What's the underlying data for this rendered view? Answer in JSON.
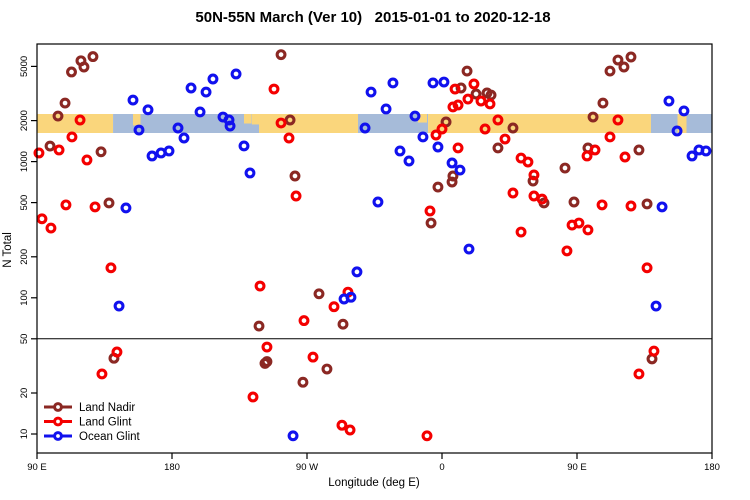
{
  "title": "50N-55N March (Ver 10)   2015-01-01 to 2020-12-18",
  "legend": {
    "items": [
      {
        "label": "Land Nadir",
        "color": "#8B2823"
      },
      {
        "label": "Land Glint",
        "color": "#F40000"
      },
      {
        "label": "Ocean Glint",
        "color": "#1111EE"
      }
    ]
  },
  "chart_data": {
    "type": "scatter",
    "title": "50N-55N March (Ver 10)   2015-01-01 to 2020-12-18",
    "xlabel": "Longitude (deg E)",
    "ylabel": "N Total",
    "x_axis": {
      "range": [
        90,
        540
      ],
      "ticks": [
        {
          "lon": 90,
          "label": "90 E"
        },
        {
          "lon": 180,
          "label": "180"
        },
        {
          "lon": 270,
          "label": "90 W"
        },
        {
          "lon": 360,
          "label": "0"
        },
        {
          "lon": 450,
          "label": "90 E"
        },
        {
          "lon": 540,
          "label": "180"
        }
      ],
      "note": "longitude increases eastward from 90E, wrapping through 180, 90W, 0 back to 180"
    },
    "y_axis": {
      "scale": "log",
      "range": [
        7,
        7500
      ],
      "ticks": [
        10,
        20,
        50,
        100,
        200,
        500,
        1000,
        2000,
        5000
      ]
    },
    "reference_line_n": 50,
    "land_ocean_band": {
      "center_n": 1900,
      "land_color": "#FAD67C",
      "ocean_color": "#A6BBD9",
      "segments": [
        {
          "from": 90,
          "to": 140.7,
          "type": "land"
        },
        {
          "from": 140.7,
          "to": 233.3,
          "type": "ocean"
        },
        {
          "from": 233.3,
          "to": 304,
          "type": "land"
        },
        {
          "from": 304,
          "to": 350.7,
          "type": "ocean"
        },
        {
          "from": 350.7,
          "to": 499.3,
          "type": "land"
        },
        {
          "from": 499.3,
          "to": 540,
          "type": "ocean"
        }
      ],
      "patches": [
        {
          "from": 154,
          "to": 159,
          "type": "land",
          "frac_top": 0,
          "frac_bot": 0.6
        },
        {
          "from": 228,
          "to": 233,
          "type": "land",
          "frac_top": 0,
          "frac_bot": 0.5
        },
        {
          "from": 233,
          "to": 238,
          "type": "ocean",
          "frac_top": 0.55,
          "frac_bot": 1
        },
        {
          "from": 344,
          "to": 350,
          "type": "land",
          "frac_top": 0,
          "frac_bot": 0.45
        },
        {
          "from": 517,
          "to": 523,
          "type": "land",
          "frac_top": 0,
          "frac_bot": 1
        }
      ]
    },
    "series": [
      {
        "name": "Land Nadir",
        "color": "#8B2823",
        "points": [
          [
            119.3,
            5500
          ],
          [
            113,
            4550
          ],
          [
            121.3,
            4950
          ],
          [
            127.3,
            5900
          ],
          [
            108.7,
            2690
          ],
          [
            104,
            2160
          ],
          [
            98.7,
            1300
          ],
          [
            132.7,
            1180
          ],
          [
            138,
            497
          ],
          [
            238,
            62
          ],
          [
            242,
            33
          ],
          [
            141.3,
            36
          ],
          [
            252.7,
            6100
          ],
          [
            258.7,
            2020
          ],
          [
            262,
            784
          ],
          [
            278,
            107
          ],
          [
            294,
            64
          ],
          [
            283.3,
            30
          ],
          [
            267.3,
            24
          ],
          [
            243.3,
            34
          ],
          [
            352.7,
            354
          ],
          [
            357.3,
            650
          ],
          [
            366.7,
            708
          ],
          [
            362.7,
            1955
          ],
          [
            367.3,
            784
          ],
          [
            376.7,
            4620
          ],
          [
            372.7,
            3470
          ],
          [
            382.7,
            3135
          ],
          [
            390,
            3190
          ],
          [
            392.7,
            3080
          ],
          [
            407.3,
            1765
          ],
          [
            397.3,
            1260
          ],
          [
            420.7,
            720
          ],
          [
            428,
            497
          ],
          [
            448,
            505
          ],
          [
            442,
            897
          ],
          [
            472,
            4620
          ],
          [
            477.3,
            5570
          ],
          [
            481.3,
            4950
          ],
          [
            486,
            5860
          ],
          [
            467.3,
            2690
          ],
          [
            460.7,
            2125
          ],
          [
            457.3,
            1260
          ],
          [
            491.3,
            1217
          ],
          [
            496.7,
            489
          ],
          [
            500,
            35.6
          ]
        ]
      },
      {
        "name": "Land Glint",
        "color": "#F40000",
        "points": [
          [
            118.7,
            2020
          ],
          [
            113.3,
            1517
          ],
          [
            104.7,
            1217
          ],
          [
            91.3,
            1157
          ],
          [
            123.3,
            1028
          ],
          [
            93.3,
            380
          ],
          [
            99.3,
            325
          ],
          [
            109.3,
            481
          ],
          [
            128.7,
            465
          ],
          [
            139.3,
            166
          ],
          [
            143.3,
            40
          ],
          [
            133.3,
            27.6
          ],
          [
            248,
            3410
          ],
          [
            252.7,
            1920
          ],
          [
            258,
            1490
          ],
          [
            262.7,
            559
          ],
          [
            238.7,
            122
          ],
          [
            268,
            68
          ],
          [
            274,
            36.7
          ],
          [
            243.3,
            43.5
          ],
          [
            234,
            18.7
          ],
          [
            293.3,
            11.6
          ],
          [
            298.7,
            10.7
          ],
          [
            350,
            9.7
          ],
          [
            352,
            434
          ],
          [
            297.3,
            110
          ],
          [
            288,
            86
          ],
          [
            381.3,
            3715
          ],
          [
            368.7,
            3410
          ],
          [
            377.3,
            2880
          ],
          [
            386,
            2785
          ],
          [
            392,
            2650
          ],
          [
            370.7,
            2605
          ],
          [
            367.3,
            2520
          ],
          [
            360,
            1735
          ],
          [
            356,
            1568
          ],
          [
            370.7,
            1260
          ],
          [
            388.7,
            1735
          ],
          [
            397.3,
            2020
          ],
          [
            402,
            1465
          ],
          [
            412.7,
            1062
          ],
          [
            417.3,
            993
          ],
          [
            421.3,
            798
          ],
          [
            407.3,
            588
          ],
          [
            421.3,
            559
          ],
          [
            426.7,
            531
          ],
          [
            466.7,
            481
          ],
          [
            446.7,
            342
          ],
          [
            451.3,
            354
          ],
          [
            457.3,
            315
          ],
          [
            412.7,
            304
          ],
          [
            443.3,
            221
          ],
          [
            486,
            472
          ],
          [
            496.7,
            166
          ],
          [
            477.3,
            2020
          ],
          [
            472,
            1517
          ],
          [
            462,
            1217
          ],
          [
            456.7,
            1100
          ],
          [
            482,
            1081
          ],
          [
            501.3,
            40.6
          ],
          [
            491.3,
            27.6
          ]
        ]
      },
      {
        "name": "Ocean Glint",
        "color": "#1111EE",
        "points": [
          [
            154,
            2830
          ],
          [
            164,
            2400
          ],
          [
            158,
            1705
          ],
          [
            184,
            1765
          ],
          [
            188,
            1490
          ],
          [
            192.7,
            3470
          ],
          [
            202.7,
            3240
          ],
          [
            198.7,
            2315
          ],
          [
            207.3,
            4040
          ],
          [
            222.7,
            4400
          ],
          [
            214,
            2125
          ],
          [
            218,
            2020
          ],
          [
            218.7,
            1825
          ],
          [
            228,
            1303
          ],
          [
            166.7,
            1100
          ],
          [
            172.7,
            1157
          ],
          [
            178,
            1197
          ],
          [
            232,
            825
          ],
          [
            149.3,
            457
          ],
          [
            144.7,
            87
          ],
          [
            260.7,
            9.7
          ],
          [
            303.3,
            155
          ],
          [
            294.7,
            98
          ],
          [
            299.3,
            101
          ],
          [
            317.3,
            505
          ],
          [
            312.7,
            3240
          ],
          [
            327.3,
            3780
          ],
          [
            322.7,
            2435
          ],
          [
            308.7,
            1765
          ],
          [
            342,
            2160
          ],
          [
            332,
            1197
          ],
          [
            338,
            1010
          ],
          [
            354,
            3780
          ],
          [
            361.3,
            3840
          ],
          [
            347.3,
            1517
          ],
          [
            357.3,
            1280
          ],
          [
            366.7,
            977
          ],
          [
            372,
            867
          ],
          [
            378,
            228
          ],
          [
            502.7,
            87
          ],
          [
            506.7,
            465
          ],
          [
            511.3,
            2785
          ],
          [
            521.3,
            2355
          ],
          [
            516.7,
            1678
          ],
          [
            526.7,
            1100
          ],
          [
            531.3,
            1217
          ],
          [
            536,
            1197
          ]
        ]
      }
    ]
  }
}
